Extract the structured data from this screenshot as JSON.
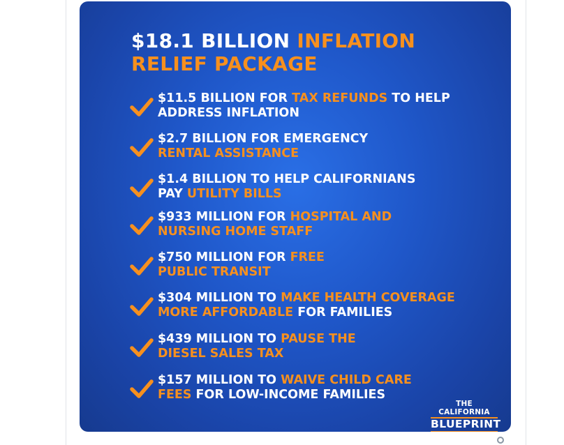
{
  "graphic": {
    "headline": {
      "line1_white": "$18.1 BILLION ",
      "line1_orange": "INFLATION",
      "line2_orange": "RELIEF PACKAGE"
    },
    "items": [
      {
        "l1a": "$11.5 BILLION FOR ",
        "l1b": "TAX REFUNDS",
        "l1c": " TO HELP",
        "l2a": "ADDRESS INFLATION",
        "l2b": "",
        "l2c": ""
      },
      {
        "l1a": "$2.7 BILLION FOR EMERGENCY",
        "l1b": "",
        "l1c": "",
        "l2a": "",
        "l2b": "RENTAL ASSISTANCE",
        "l2c": ""
      },
      {
        "l1a": "$1.4 BILLION TO HELP CALIFORNIANS",
        "l1b": "",
        "l1c": "",
        "l2a": "PAY ",
        "l2b": "UTILITY BILLS",
        "l2c": ""
      },
      {
        "l1a": "$933 MILLION FOR ",
        "l1b": "HOSPITAL AND",
        "l1c": "",
        "l2a": "",
        "l2b": "NURSING HOME STAFF",
        "l2c": ""
      },
      {
        "l1a": "$750 MILLION FOR ",
        "l1b": "FREE",
        "l1c": "",
        "l2a": "",
        "l2b": "PUBLIC TRANSIT",
        "l2c": ""
      },
      {
        "l1a": "$304 MILLION TO ",
        "l1b": "MAKE HEALTH COVERAGE",
        "l1c": "",
        "l2a": "",
        "l2b": "MORE AFFORDABLE",
        "l2c": " FOR FAMILIES"
      },
      {
        "l1a": "$439 MILLION TO ",
        "l1b": "PAUSE THE",
        "l1c": "",
        "l2a": "",
        "l2b": "DIESEL SALES TAX",
        "l2c": ""
      },
      {
        "l1a": "$157 MILLION TO ",
        "l1b": "WAIVE CHILD CARE",
        "l1c": "",
        "l2a": "",
        "l2b": "FEES",
        "l2c": " FOR LOW-INCOME FAMILIES"
      }
    ],
    "brand": {
      "line1": "THE CALIFORNIA",
      "line2": "BLUEPRINT"
    },
    "icon": "checkmark-icon"
  },
  "colors": {
    "accent": "#f7901e",
    "background_blue": "#1f57c9",
    "text": "#ffffff"
  }
}
